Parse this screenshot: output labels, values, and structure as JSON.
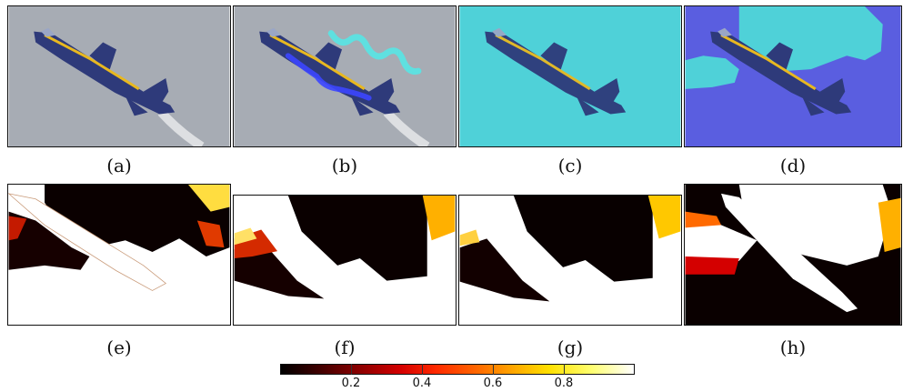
{
  "figure": {
    "captions": [
      "(a)",
      "(b)",
      "(c)",
      "(d)",
      "(e)",
      "(f)",
      "(g)",
      "(h)"
    ],
    "colorbar": {
      "tick_labels": [
        "0.2",
        "0.4",
        "0.6",
        "0.8"
      ],
      "colormap": [
        "#000000",
        "#8a0000",
        "#ff2a00",
        "#ffa800",
        "#ffff70",
        "#ffffff"
      ]
    },
    "colors": {
      "sky_gray": "#a7acb4",
      "scribble_cyan": "#5fe0e0",
      "segment_cyan": "#4fd1d8",
      "segment_blue": "#5a5ee0",
      "jet_blue": "#2e3a7a",
      "accent_yellow": "#e8b820"
    }
  }
}
